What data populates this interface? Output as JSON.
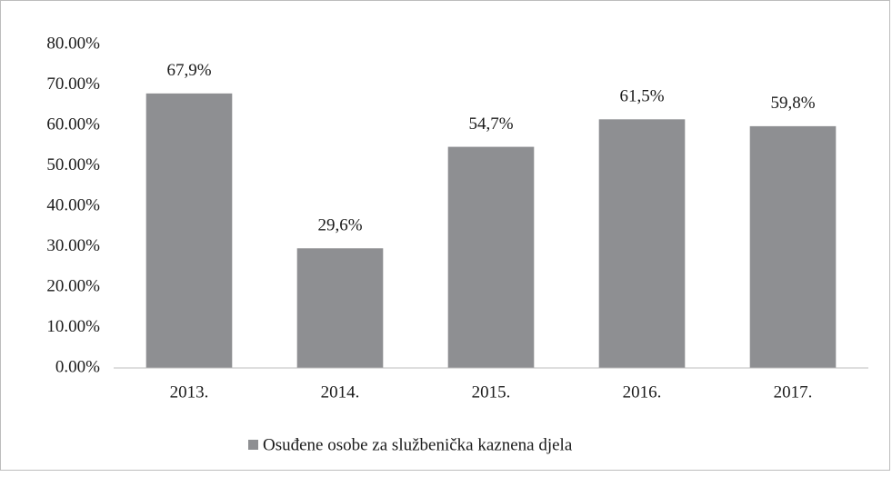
{
  "chart_data": {
    "type": "bar",
    "categories": [
      "2013.",
      "2014.",
      "2015.",
      "2016.",
      "2017."
    ],
    "series": [
      {
        "name": "Osuđene osobe za službenička kaznena djela",
        "color": "#8e8f92",
        "values": [
          67.9,
          29.6,
          54.7,
          61.5,
          59.8
        ],
        "value_labels": [
          "67,9%",
          "29,6%",
          "54,7%",
          "61,5%",
          "59,8%"
        ]
      }
    ],
    "ylim": [
      0,
      80
    ],
    "yticks": [
      {
        "value": 0,
        "label": "0.00%"
      },
      {
        "value": 10,
        "label": "10.00%"
      },
      {
        "value": 20,
        "label": "20.00%"
      },
      {
        "value": 30,
        "label": "30.00%"
      },
      {
        "value": 40,
        "label": "40.00%"
      },
      {
        "value": 50,
        "label": "50.00%"
      },
      {
        "value": 60,
        "label": "60.00%"
      },
      {
        "value": 70,
        "label": "70.00%"
      },
      {
        "value": 80,
        "label": "80.00%"
      }
    ],
    "grid": false,
    "legend": "bottom"
  }
}
